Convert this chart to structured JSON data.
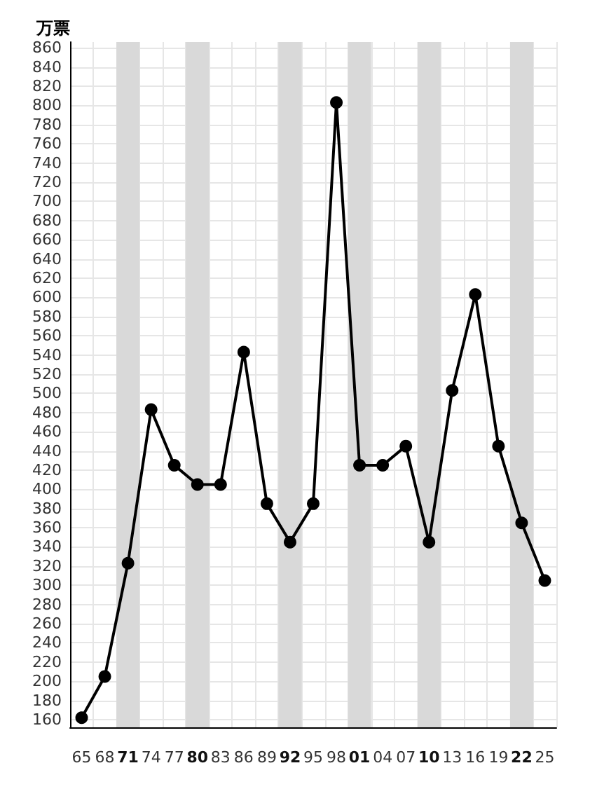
{
  "chart_data": {
    "type": "line",
    "ylabel": "万票",
    "categories": [
      "65",
      "68",
      "71",
      "74",
      "77",
      "80",
      "83",
      "86",
      "89",
      "92",
      "95",
      "98",
      "01",
      "04",
      "07",
      "10",
      "13",
      "16",
      "19",
      "22",
      "25"
    ],
    "values": [
      162,
      205,
      323,
      483,
      425,
      405,
      405,
      543,
      385,
      345,
      385,
      803,
      425,
      425,
      445,
      345,
      503,
      603,
      445,
      365,
      305
    ],
    "color": "#000000",
    "marker": "circle",
    "line_style": "solid",
    "ylim": [
      152,
      866
    ],
    "yticks": [
      160,
      180,
      200,
      220,
      240,
      260,
      280,
      300,
      320,
      340,
      360,
      380,
      400,
      420,
      440,
      460,
      480,
      500,
      520,
      540,
      560,
      580,
      600,
      620,
      640,
      660,
      680,
      700,
      720,
      740,
      760,
      780,
      800,
      820,
      840,
      860
    ],
    "grid": true,
    "bands": [
      {
        "axis": "x",
        "from": "71",
        "to": "71",
        "color": "#d9d9d9"
      },
      {
        "axis": "x",
        "from": "80",
        "to": "80",
        "color": "#d9d9d9"
      },
      {
        "axis": "x",
        "from": "92",
        "to": "92",
        "color": "#d9d9d9"
      },
      {
        "axis": "x",
        "from": "01",
        "to": "01",
        "color": "#d9d9d9"
      },
      {
        "axis": "x",
        "from": "10",
        "to": "10",
        "color": "#d9d9d9"
      },
      {
        "axis": "x",
        "from": "22",
        "to": "22",
        "color": "#d9d9d9"
      }
    ]
  }
}
